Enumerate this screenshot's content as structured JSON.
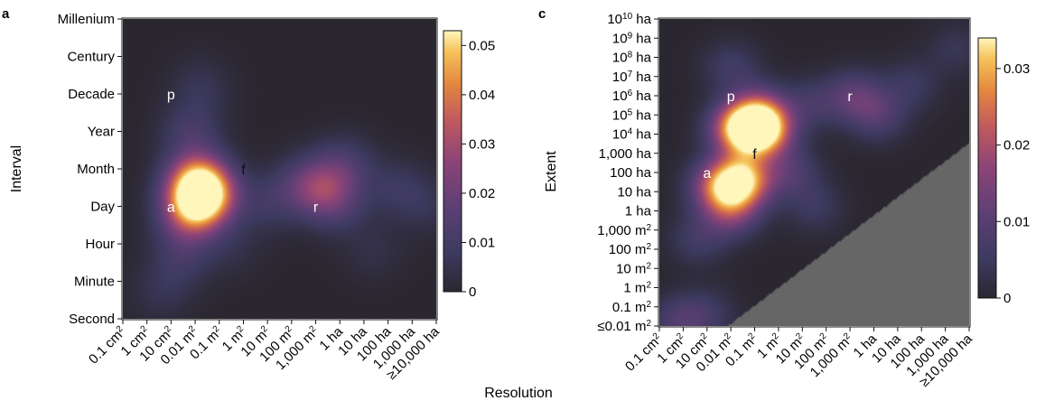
{
  "chart_data": [
    {
      "type": "heatmap",
      "panel_label": "a",
      "xlabel": "",
      "ylabel": "Interval",
      "x_categories": [
        "0.1 cm²",
        "1 cm²",
        "10 cm²",
        "0.01 m²",
        "0.1 m²",
        "1 m²",
        "10 m²",
        "100 m²",
        "1,000 m²",
        "1 ha",
        "10 ha",
        "100 ha",
        "1,000 ha",
        "≥10,000 ha"
      ],
      "y_categories": [
        "Second",
        "Minute",
        "Hour",
        "Day",
        "Month",
        "Year",
        "Decade",
        "Century",
        "Millenium"
      ],
      "colorbar": {
        "min": 0,
        "max": 0.053,
        "ticks": [
          "0",
          "0.01",
          "0.02",
          "0.03",
          "0.04",
          "0.05"
        ]
      },
      "point_labels": [
        {
          "text": "p",
          "x": "10 cm²",
          "y": "Decade"
        },
        {
          "text": "f",
          "x": "1 m²",
          "y": "Month"
        },
        {
          "text": "a",
          "x": "10 cm²",
          "y": "Day"
        },
        {
          "text": "r",
          "x": "1,000 m²",
          "y": "Day"
        }
      ],
      "hotspots": [
        {
          "x": 3.3,
          "y": 3.35,
          "value": 0.053
        },
        {
          "x": 3.0,
          "y": 3.8,
          "value": 0.02
        },
        {
          "x": 3.0,
          "y": 3.0,
          "value": 0.02
        },
        {
          "x": 2.6,
          "y": 2.6,
          "value": 0.012
        },
        {
          "x": 2.8,
          "y": 5.0,
          "value": 0.01
        },
        {
          "x": 3.2,
          "y": 6.2,
          "value": 0.006
        },
        {
          "x": 8.4,
          "y": 3.4,
          "value": 0.016
        },
        {
          "x": 7.6,
          "y": 3.6,
          "value": 0.012
        },
        {
          "x": 9.2,
          "y": 4.1,
          "value": 0.011
        },
        {
          "x": 9.0,
          "y": 3.0,
          "value": 0.007
        },
        {
          "x": 11.4,
          "y": 3.5,
          "value": 0.007
        },
        {
          "x": 12.6,
          "y": 3.0,
          "value": 0.005
        },
        {
          "x": 10.4,
          "y": 1.8,
          "value": 0.004
        },
        {
          "x": 6.0,
          "y": 3.1,
          "value": 0.008
        },
        {
          "x": 1.6,
          "y": 0.7,
          "value": 0.005
        },
        {
          "x": 2.4,
          "y": 1.6,
          "value": 0.008
        },
        {
          "x": 4.5,
          "y": 1.9,
          "value": 0.004
        }
      ]
    },
    {
      "type": "heatmap",
      "panel_label": "c",
      "xlabel": "Resolution",
      "ylabel": "Extent",
      "x_categories": [
        "0.1 cm²",
        "1 cm²",
        "10 cm²",
        "0.01 m²",
        "0.1 m²",
        "1 m²",
        "10 m²",
        "100 m²",
        "1,000 m²",
        "1 ha",
        "10 ha",
        "100 ha",
        "1,000 ha",
        "≥10,000 ha"
      ],
      "y_categories": [
        "≤0.01 m²",
        "0.1 m²",
        "1 m²",
        "10 m²",
        "100 m²",
        "1,000 m²",
        "1 ha",
        "10 ha",
        "100 ha",
        "1,000 ha",
        "10⁴ ha",
        "10⁵ ha",
        "10⁶ ha",
        "10⁷ ha",
        "10⁸ ha",
        "10⁹ ha",
        "10¹⁰ ha"
      ],
      "colorbar": {
        "min": 0,
        "max": 0.034,
        "ticks": [
          "0",
          "0.01",
          "0.02",
          "0.03"
        ]
      },
      "masked_region": "extent smaller than resolution (grey triangle)",
      "point_labels": [
        {
          "text": "p",
          "x": "0.01 m²",
          "y": "10⁶ ha"
        },
        {
          "text": "f",
          "x": "0.1 m²",
          "y": "1,000 ha"
        },
        {
          "text": "a",
          "x": "10 cm²",
          "y": "100 ha"
        },
        {
          "text": "r",
          "x": "1,000 m²",
          "y": "10⁶ ha"
        }
      ],
      "hotspots": [
        {
          "x": 4.3,
          "y": 10.2,
          "value": 0.034
        },
        {
          "x": 3.3,
          "y": 10.3,
          "value": 0.026
        },
        {
          "x": 3.5,
          "y": 7.6,
          "value": 0.028
        },
        {
          "x": 2.5,
          "y": 7.3,
          "value": 0.02
        },
        {
          "x": 3.0,
          "y": 6.0,
          "value": 0.014
        },
        {
          "x": 4.2,
          "y": 11.2,
          "value": 0.014
        },
        {
          "x": 3.0,
          "y": 13.5,
          "value": 0.006
        },
        {
          "x": 8.2,
          "y": 12.0,
          "value": 0.01
        },
        {
          "x": 9.2,
          "y": 11.0,
          "value": 0.008
        },
        {
          "x": 10.6,
          "y": 12.6,
          "value": 0.005
        },
        {
          "x": 12.5,
          "y": 14.5,
          "value": 0.004
        },
        {
          "x": 6.4,
          "y": 11.6,
          "value": 0.006
        },
        {
          "x": 1.6,
          "y": 4.5,
          "value": 0.006
        },
        {
          "x": 5.5,
          "y": 8.0,
          "value": 0.008
        },
        {
          "x": 6.5,
          "y": 6.2,
          "value": 0.005
        },
        {
          "x": 0.8,
          "y": 0.2,
          "value": 0.008
        },
        {
          "x": 2.0,
          "y": 0.6,
          "value": 0.005
        }
      ]
    }
  ]
}
